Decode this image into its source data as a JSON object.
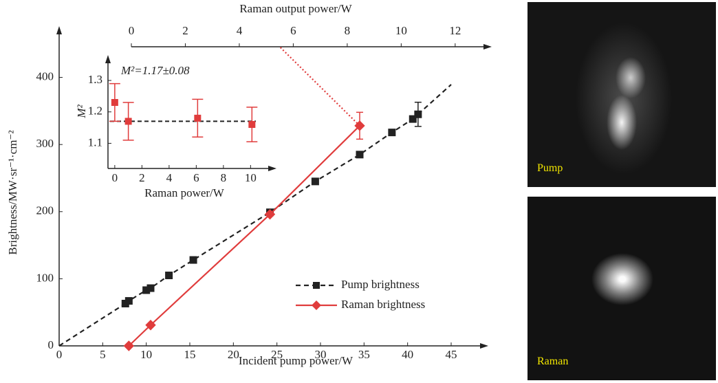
{
  "chart_data": [
    {
      "type": "line",
      "xlabel": "Incident pump power/W",
      "ylabel": "Brightness/MW·sr⁻¹·cm⁻²",
      "x2label": "Raman output power/W",
      "xlim": [
        0,
        48
      ],
      "xticks": [
        0,
        5,
        10,
        15,
        20,
        25,
        30,
        35,
        40,
        45
      ],
      "ylim": [
        0,
        460
      ],
      "yticks": [
        0,
        100,
        200,
        300,
        400
      ],
      "x2lim": [
        0,
        13.1
      ],
      "x2ticks": [
        0,
        2,
        4,
        6,
        8,
        10,
        12
      ],
      "series": [
        {
          "name": "Pump brightness",
          "color": "#222222",
          "marker": "square",
          "dash": true,
          "x": [
            7.6,
            8.0,
            10.0,
            10.5,
            12.6,
            15.4,
            24.2,
            29.4,
            34.5,
            38.2,
            40.6,
            41.2
          ],
          "values": [
            63,
            67,
            83,
            86,
            105,
            128,
            199,
            245,
            285,
            318,
            338,
            345
          ],
          "errors": [
            null,
            null,
            null,
            null,
            null,
            null,
            null,
            null,
            null,
            null,
            null,
            18
          ]
        },
        {
          "name": "Raman brightness",
          "color": "#e03c3c",
          "marker": "diamond",
          "dash": false,
          "x": [
            8,
            10.5,
            24.2,
            34.5
          ],
          "values": [
            0,
            31,
            196,
            328
          ],
          "errors": [
            null,
            null,
            null,
            20
          ]
        }
      ]
    },
    {
      "type": "scatter",
      "xlabel": "Raman power/W",
      "ylabel": "M²",
      "annotation": "M²=1.17±0.08",
      "xlim": [
        -0.5,
        11.4
      ],
      "xticks": [
        0,
        2,
        4,
        6,
        8,
        10
      ],
      "ylim": [
        1.02,
        1.37
      ],
      "yticks": [
        1.1,
        1.2,
        1.3
      ],
      "reference_line": 1.17,
      "color": "#e03c3c",
      "x": [
        0,
        1,
        6.1,
        10.1
      ],
      "values": [
        1.23,
        1.17,
        1.18,
        1.16
      ],
      "errors": [
        0.06,
        0.06,
        0.06,
        0.055
      ]
    }
  ],
  "images": [
    {
      "label": "Pump"
    },
    {
      "label": "Raman"
    }
  ]
}
